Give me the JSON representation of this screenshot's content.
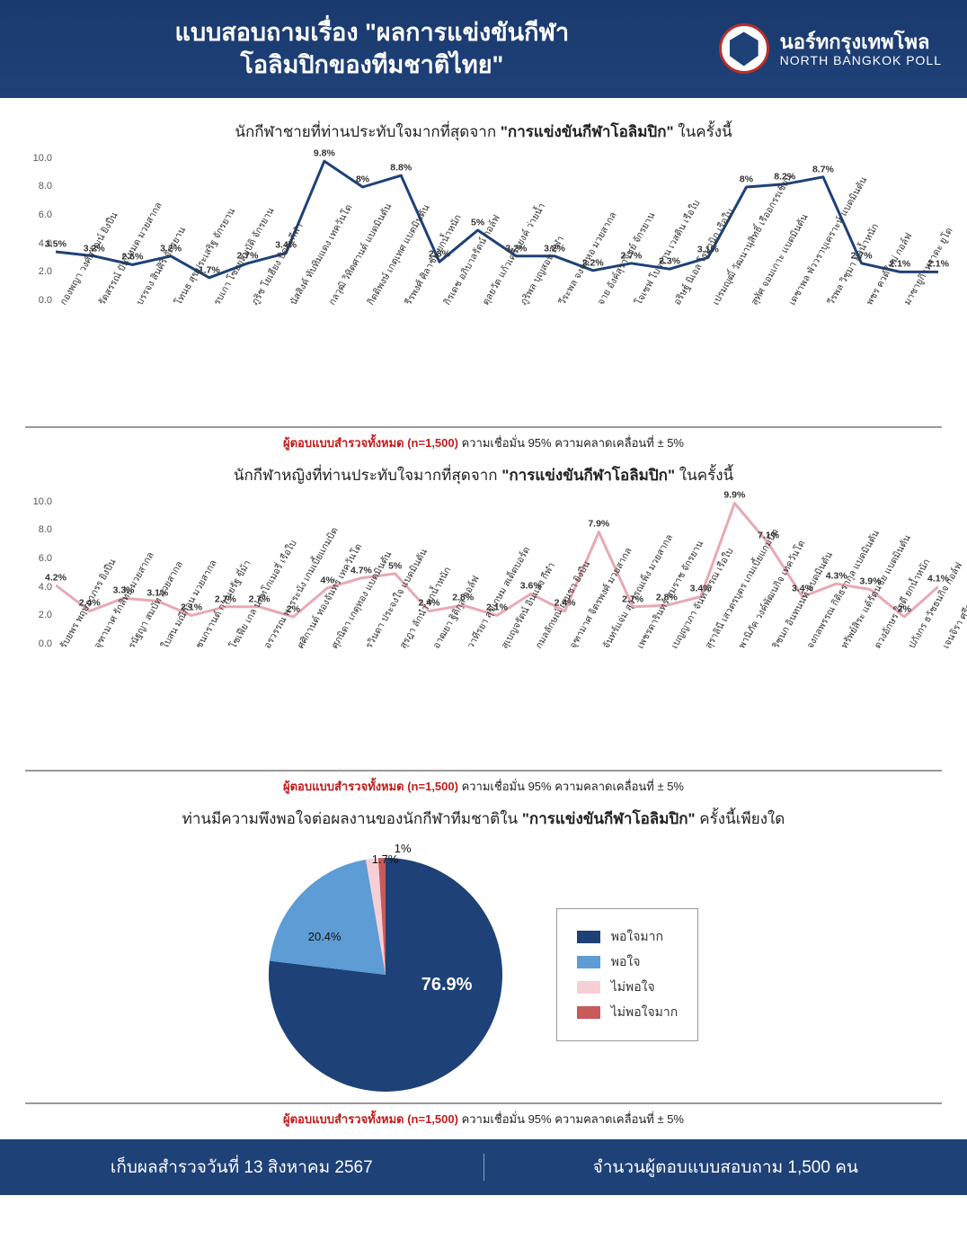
{
  "colors": {
    "header_bg": "#1e4178",
    "male_line": "#1e4178",
    "female_line": "#e8a9b4",
    "grid": "#e5e5e5",
    "pie": [
      "#1e4178",
      "#5d9cd4",
      "#f6cfd6",
      "#c85a5a"
    ]
  },
  "header": {
    "title_line1": "แบบสอบถามเรื่อง \"ผลการแข่งขันกีฬา",
    "title_line2": "โอลิมปิกของทีมชาติไทย\"",
    "brand_th": "นอร์ทกรุงเทพโพล",
    "brand_en": "NORTH BANGKOK POLL"
  },
  "chart_male": {
    "title_pre": "นักกีฬาชายที่ท่านประทับใจมากที่สุดจาก ",
    "title_bold": "\"การแข่งขันกีฬาโอลิมปิก\"",
    "title_post": " ในครั้งนี้",
    "ymax": 10,
    "ytick_step": 2,
    "line_color": "#1e4178",
    "line_width": 3,
    "points": [
      {
        "x": "กองพญา วงศ์สุวัฒน์ ยิงปืน",
        "v": 3.5
      },
      {
        "x": "รัตสรรณ์ ปันโหมด มวยสากล",
        "v": 3.2
      },
      {
        "x": "บรรจง สินศิริ จักรยาน",
        "v": 2.6
      },
      {
        "x": "โทนธ สุขประเสริฐ จักรยาน",
        "v": 3.2
      },
      {
        "x": "รบเกา โซยยสมบัติ จักรยาน",
        "v": 1.7
      },
      {
        "x": "ภูริช โยเฮียง ปืดจะกีฬา",
        "v": 2.7
      },
      {
        "x": "นัสสิงค์ ทับทิมแดง เทควันโด",
        "v": 3.4
      },
      {
        "x": "กลวุฒิ วิทิตศานต์ แบดมินตัน",
        "v": 9.8
      },
      {
        "x": "กิตติพงษ์ เกตุเทศ แบดมินตัน",
        "v": 8.0
      },
      {
        "x": "รีรพงศ์ ศิลาชัย ยกน้ำหนัก",
        "v": 8.8
      },
      {
        "x": "กิรเดช อภิบาลรัตน์ กอล์ฟ",
        "v": 2.8
      },
      {
        "x": "ดุลยวัต แก้วเครือยงค์ ว่ายน้ำ",
        "v": 5.0
      },
      {
        "x": "ภูริพล บุญสอน กีฬา",
        "v": 3.2
      },
      {
        "x": "วีระพล จงจอหอ มวยสากล",
        "v": 3.2
      },
      {
        "x": "จาย อังค์สุราวิชย์ จักรยาน",
        "v": 2.2
      },
      {
        "x": "โจเซฟ โบวราน เวสติน เรือใบ",
        "v": 2.7
      },
      {
        "x": "อริษฐ์ นิเอล โรมานิก เรือใบ",
        "v": 2.3
      },
      {
        "x": "เปรมญุฒิ์ วัฒนานุสิทธิ์ เรืออกรรเชียน",
        "v": 3.1
      },
      {
        "x": "สุทัศ จอมเกาะ แบดมินตัน",
        "v": 8.0
      },
      {
        "x": "เดชาพล พัววราบุเคราะห์ แบดมินตัน",
        "v": 8.2
      },
      {
        "x": "วีรพล วิชุมา ยกน้ำหนัก",
        "v": 8.7
      },
      {
        "x": "พชร ควต์ใหม่ กอล์ฟ",
        "v": 2.7
      },
      {
        "x": "มาซายูกิ เทราดะ ยูโด",
        "v": 2.1
      },
      {
        "x": "",
        "v": 2.1
      }
    ]
  },
  "chart_female": {
    "title_pre": "นักกีฬาหญิงที่ท่านประทับใจมากที่สุดจาก ",
    "title_bold": "\"การแข่งขันกีฬาโอลิมปิก\"",
    "title_post": " ในครั้งนี้",
    "ymax": 10,
    "ytick_step": 2,
    "line_color": "#e8a9b4",
    "line_width": 3,
    "points": [
      {
        "x": "รับยพร พฤษภาภรร ยิงปืน",
        "v": 4.2
      },
      {
        "x": "จุฑามาศ รักสิทธิ์ มวยสากล",
        "v": 2.4
      },
      {
        "x": "รนัฐญา สมบัท มวยสากล",
        "v": 3.3
      },
      {
        "x": "ใบสน มณีก้อน มวยสากล",
        "v": 3.1
      },
      {
        "x": "ชนกรานต์ กรุณยรัฐ ขี่ม้า",
        "v": 2.1
      },
      {
        "x": "โซเฟีย เกล นอทโกเมอรี่ เรือใบ",
        "v": 2.7
      },
      {
        "x": "อรวรรณ พารระนัง เกมเบี้ยแกมบิต",
        "v": 2.7
      },
      {
        "x": "ศศิกานต์ ทองจันทร์ เทควันโด",
        "v": 2.0
      },
      {
        "x": "ศุภนิดา เกตุทอง แบดมินตัน",
        "v": 4.0
      },
      {
        "x": "รวินดา ประจงใจ แบดมินตัน",
        "v": 4.7
      },
      {
        "x": "สุรฎา ลักนำ ยกน้ำหนัก",
        "v": 5.0
      },
      {
        "x": "อาฒยา ฐิติกุล กอล์ฟ",
        "v": 2.4
      },
      {
        "x": "วาทีรยา สุขเกษม สเด็ตบอร์ด",
        "v": 2.8
      },
      {
        "x": "สุเบญจรัตน์ อินแสง กีฬา",
        "v": 2.1
      },
      {
        "x": "กมลลักษณ์ เสนชา ยิงปืน",
        "v": 3.6
      },
      {
        "x": "จุฑามาศ จิตรพงศ์ มวยสากล",
        "v": 2.4
      },
      {
        "x": "จันทร์แจ่ม สุวรรณเพ็ง มวยสากล",
        "v": 7.9
      },
      {
        "x": "เพชรดารินทร์ สมราช จักรยาน",
        "v": 2.7
      },
      {
        "x": "เบญญาภา จันทวรรณ เรือใบ",
        "v": 2.8
      },
      {
        "x": "สุราลินี เสวตรบุตร เกมเบี้ยแกมบิต",
        "v": 3.4
      },
      {
        "x": "พานิภัค วงค์พัฒนกิจ เทควันโด",
        "v": 9.9
      },
      {
        "x": "ริชนก อินทนนท์ แบดมินตัน",
        "v": 7.1
      },
      {
        "x": "จงกลพรรณ กิติธรากุล แบดมินตัน",
        "v": 3.4
      },
      {
        "x": "ทรัพย์สิระ แต้รัตนชัย แบดมินตัน",
        "v": 4.3
      },
      {
        "x": "ดวงอักษร ใจดี ยกน้ำหนัก",
        "v": 3.9
      },
      {
        "x": "ปภังกร ธวัชธนกิจ กอล์ฟ",
        "v": 2.0
      },
      {
        "x": "เจนจิรา ศรีสะอาด ว่ายน้ำ",
        "v": 4.1
      }
    ]
  },
  "footnote": {
    "red": "ผู้ตอบแบบสำรวจทั้งหมด (n=1,500)",
    "rest": " ความเชื่อมั่น 95% ความคลาดเคลื่อนที่ ± 5%"
  },
  "pie": {
    "title_pre": "ท่านมีความพึงพอใจต่อผลงานของนักกีฬาทีมชาติใน ",
    "title_bold": "\"การแข่งขันกีฬาโอลิมปิก\"",
    "title_post": " ครั้งนี้เพียงใด",
    "slices": [
      {
        "label": "พอใจมาก",
        "value": 76.9,
        "color": "#1e4178"
      },
      {
        "label": "พอใจ",
        "value": 20.4,
        "color": "#5d9cd4"
      },
      {
        "label": "ไม่พอใจ",
        "value": 1.7,
        "color": "#f6cfd6"
      },
      {
        "label": "ไม่พอใจมาก",
        "value": 1.0,
        "color": "#c85a5a"
      }
    ]
  },
  "footer": {
    "left": "เก็บผลสำรวจวันที่ 13 สิงหาคม 2567",
    "right": "จำนวนผู้ตอบแบบสอบถาม 1,500 คน"
  }
}
